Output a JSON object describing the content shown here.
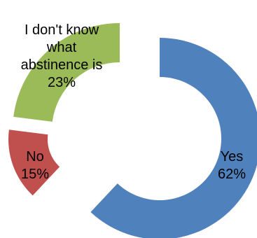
{
  "chart_data": {
    "type": "pie",
    "style": "exploded doughnut",
    "categories": [
      "Yes",
      "No",
      "I don't know what abstinence is"
    ],
    "values": [
      62,
      15,
      23
    ],
    "unit": "%",
    "colors": [
      "#4F81BD",
      "#C0504D",
      "#9BBB59"
    ],
    "data_labels": [
      [
        "Yes",
        "62%"
      ],
      [
        "No",
        "15%"
      ],
      [
        "I don't know",
        "what",
        "abstinence is",
        "23%"
      ]
    ],
    "legend": "none"
  }
}
